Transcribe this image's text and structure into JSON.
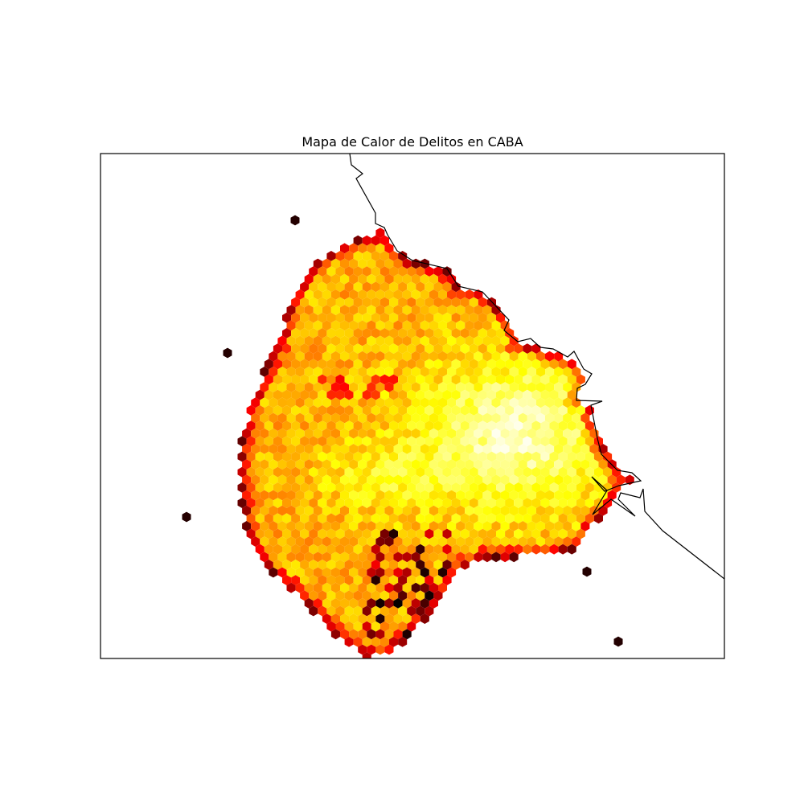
{
  "title": "Mapa de Calor de Delitos en CABA",
  "map": {
    "type": "hexbin-heatmap",
    "colormap": "hot",
    "colors": {
      "low": "#000000",
      "mid1": "#8b0000",
      "mid2": "#ff2200",
      "mid3": "#ffaa00",
      "mid4": "#ffff00",
      "high": "#ffffff"
    },
    "boundary_color": "#000000",
    "axes_ticks": "none"
  }
}
